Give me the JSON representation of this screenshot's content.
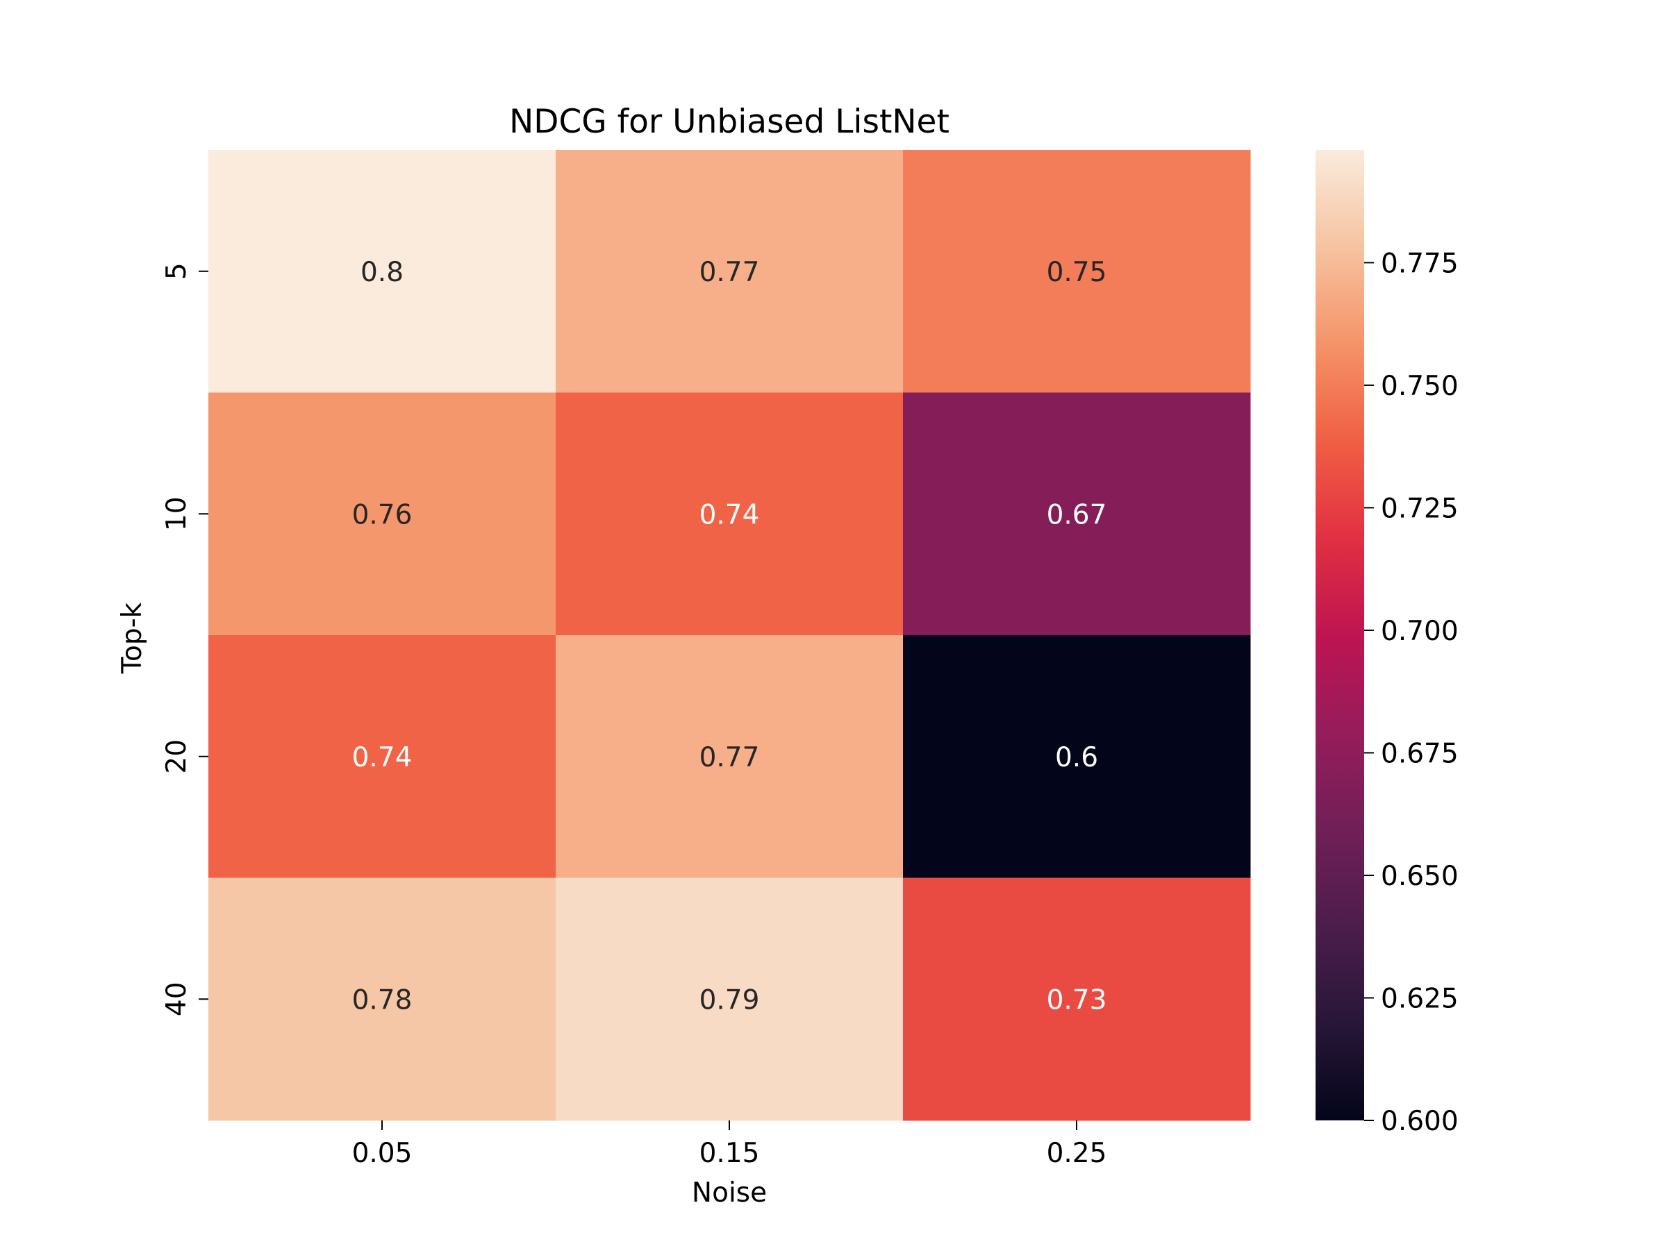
{
  "chart_data": {
    "type": "heatmap",
    "title": "NDCG for Unbiased ListNet",
    "xlabel": "Noise",
    "ylabel": "Top-k",
    "x_categories": [
      "0.05",
      "0.15",
      "0.25"
    ],
    "y_categories": [
      "5",
      "10",
      "20",
      "40"
    ],
    "values": [
      [
        0.8,
        0.77,
        0.75
      ],
      [
        0.76,
        0.74,
        0.67
      ],
      [
        0.74,
        0.77,
        0.6
      ],
      [
        0.78,
        0.79,
        0.73
      ]
    ],
    "cell_labels": [
      [
        "0.8",
        "0.77",
        "0.75"
      ],
      [
        "0.76",
        "0.74",
        "0.67"
      ],
      [
        "0.74",
        "0.77",
        "0.6"
      ],
      [
        "0.78",
        "0.79",
        "0.73"
      ]
    ],
    "colormap": "rocket",
    "colorbar": {
      "vmin": 0.6,
      "vmax": 0.798,
      "ticks": [
        "0.600",
        "0.625",
        "0.650",
        "0.675",
        "0.700",
        "0.725",
        "0.750",
        "0.775"
      ],
      "placement": "right"
    },
    "grid": false
  }
}
